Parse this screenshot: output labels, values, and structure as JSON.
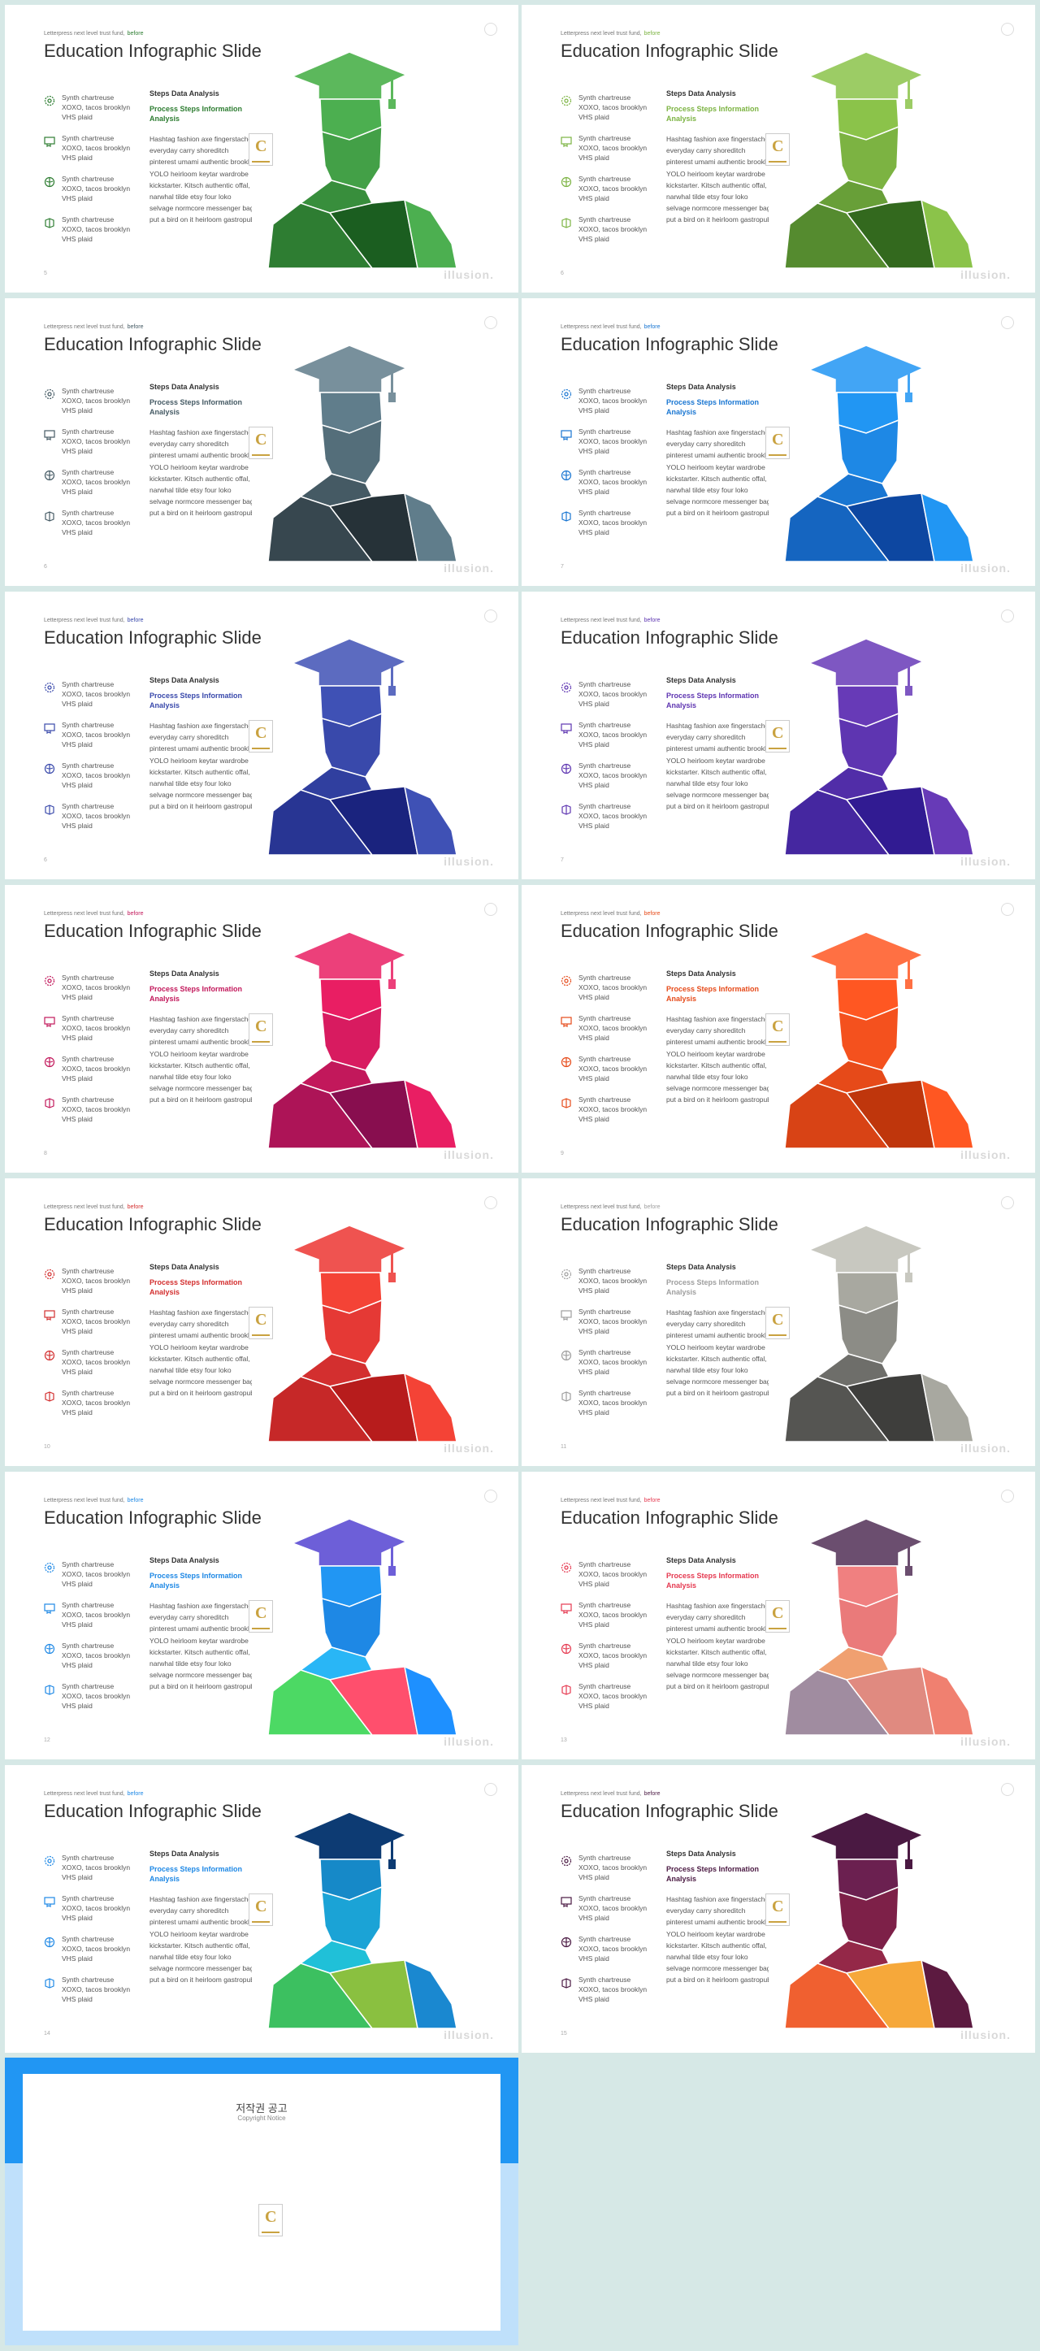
{
  "deck": {
    "pretitle": "Letterpress next level trust fund,",
    "pretitle_hl": "before",
    "title": "Education Infographic Slide",
    "step_head": "Steps Data Analysis",
    "step_sub_1": "Process Steps Information",
    "step_sub_2": "Analysis",
    "items": [
      {
        "icon": "flower-icon",
        "lines": [
          "Synth chartreuse",
          "XOXO, tacos brooklyn",
          "VHS plaid"
        ]
      },
      {
        "icon": "certificate-icon",
        "lines": [
          "Synth chartreuse",
          "XOXO, tacos brooklyn",
          "VHS plaid"
        ]
      },
      {
        "icon": "brain-icon",
        "lines": [
          "Synth chartreuse",
          "XOXO, tacos brooklyn",
          "VHS plaid"
        ]
      },
      {
        "icon": "book-icon",
        "lines": [
          "Synth chartreuse",
          "XOXO, tacos brooklyn",
          "VHS plaid"
        ]
      }
    ],
    "body_lines": [
      "Hashtag fashion axe fingerstache,",
      "everyday carry shoreditch",
      "pinterest umami authentic brooklyn",
      "YOLO heirloom keytar wardrobe",
      "kickstarter. Kitsch authentic offal,",
      "narwhal tilde etsy four loko",
      "selvage normcore messenger bag",
      "put a bird on it heirloom gastropub"
    ],
    "brand": "illusion."
  },
  "slides": [
    {
      "page": "5",
      "accent": "#2e7d32",
      "cap": "#5cb85c",
      "head": "#4caf50",
      "face": "#43a047",
      "neck": "#388e3c",
      "left": "#2e7d32",
      "mid": "#1b5e20",
      "right": "#4caf50"
    },
    {
      "page": "6",
      "accent": "#7cb342",
      "cap": "#9ccc65",
      "head": "#8bc34a",
      "face": "#7cb342",
      "neck": "#689f38",
      "left": "#558b2f",
      "mid": "#33691e",
      "right": "#8bc34a"
    },
    {
      "page": "6",
      "accent": "#455a64",
      "cap": "#78909c",
      "head": "#607d8b",
      "face": "#546e7a",
      "neck": "#455a64",
      "left": "#37474f",
      "mid": "#263238",
      "right": "#607d8b"
    },
    {
      "page": "7",
      "accent": "#1976d2",
      "cap": "#42a5f5",
      "head": "#2196f3",
      "face": "#1e88e5",
      "neck": "#1976d2",
      "left": "#1565c0",
      "mid": "#0d47a1",
      "right": "#2196f3"
    },
    {
      "page": "6",
      "accent": "#3949ab",
      "cap": "#5c6bc0",
      "head": "#3f51b5",
      "face": "#3949ab",
      "neck": "#303f9f",
      "left": "#283593",
      "mid": "#1a237e",
      "right": "#3f51b5"
    },
    {
      "page": "7",
      "accent": "#5e35b1",
      "cap": "#7e57c2",
      "head": "#673ab7",
      "face": "#5e35b1",
      "neck": "#512da8",
      "left": "#4527a0",
      "mid": "#311b92",
      "right": "#673ab7"
    },
    {
      "page": "8",
      "accent": "#c2185b",
      "cap": "#ec407a",
      "head": "#e91e63",
      "face": "#d81b60",
      "neck": "#c2185b",
      "left": "#ad1457",
      "mid": "#880e4f",
      "right": "#e91e63"
    },
    {
      "page": "9",
      "accent": "#e64a19",
      "cap": "#ff7043",
      "head": "#ff5722",
      "face": "#f4511e",
      "neck": "#e64a19",
      "left": "#d84315",
      "mid": "#bf360c",
      "right": "#ff5722"
    },
    {
      "page": "10",
      "accent": "#d32f2f",
      "cap": "#ef5350",
      "head": "#f44336",
      "face": "#e53935",
      "neck": "#d32f2f",
      "left": "#c62828",
      "mid": "#b71c1c",
      "right": "#f44336"
    },
    {
      "page": "11",
      "accent": "#9e9e9e",
      "cap": "#c8c8c0",
      "head": "#a8a8a0",
      "face": "#8c8c86",
      "neck": "#6e6e6a",
      "left": "#555552",
      "mid": "#3e3e3c",
      "right": "#a8a8a0"
    },
    {
      "page": "12",
      "accent": "#1e88e5",
      "cap": "#6d5fd8",
      "head": "#2196f3",
      "face": "#1e88e5",
      "neck": "#29b6f6",
      "left": "#4cd964",
      "mid": "#ff4f6d",
      "right": "#1e90ff"
    },
    {
      "page": "13",
      "accent": "#e53950",
      "cap": "#6b4e6f",
      "head": "#f08080",
      "face": "#ea7a7a",
      "neck": "#f0a070",
      "left": "#a08ca0",
      "mid": "#e08a80",
      "right": "#f08070"
    },
    {
      "page": "14",
      "accent": "#1e88e5",
      "cap": "#0d3b73",
      "head": "#1689c8",
      "face": "#1ba3d6",
      "neck": "#20c0d8",
      "left": "#3cc060",
      "mid": "#8ac040",
      "right": "#1a88d0"
    },
    {
      "page": "15",
      "accent": "#4a1942",
      "cap": "#4a1942",
      "head": "#6b2050",
      "face": "#7d2048",
      "neck": "#942848",
      "left": "#f06030",
      "mid": "#f6a83a",
      "right": "#5c1a40"
    }
  ],
  "copyright": {
    "title": "저작권 공고",
    "subtitle": "Copyright Notice"
  }
}
